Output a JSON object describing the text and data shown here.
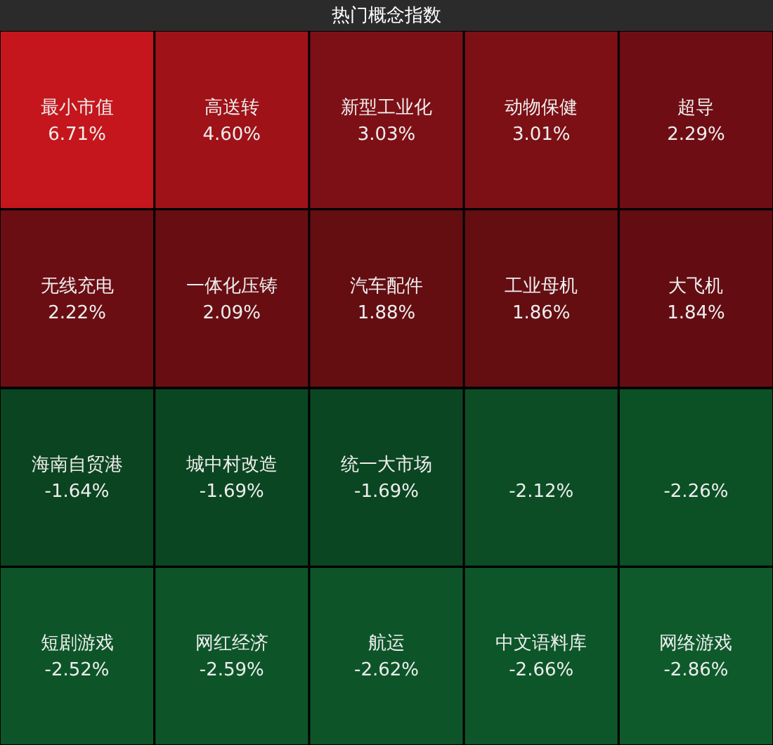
{
  "chart_data": {
    "type": "other",
    "title": "热门概念指数",
    "categories": [
      "最小市值",
      "高送转",
      "新型工业化",
      "动物保健",
      "超导",
      "无线充电",
      "一体化压铸",
      "汽车配件",
      "工业母机",
      "大飞机",
      "海南自贸港",
      "城中村改造",
      "统一大市场",
      null,
      null,
      "短剧游戏",
      "网红经济",
      "航运",
      "中文语料库",
      "网络游戏"
    ],
    "values": [
      6.71,
      4.6,
      3.03,
      3.01,
      2.29,
      2.22,
      2.09,
      1.88,
      1.86,
      1.84,
      -1.64,
      -1.69,
      -1.69,
      -2.12,
      -2.26,
      -2.52,
      -2.59,
      -2.62,
      -2.66,
      -2.86
    ],
    "value_labels": [
      "6.71%",
      "4.60%",
      "3.03%",
      "3.01%",
      "2.29%",
      "2.22%",
      "2.09%",
      "1.88%",
      "1.86%",
      "1.84%",
      "-1.64%",
      "-1.69%",
      "-1.69%",
      "-2.12%",
      "-2.26%",
      "-2.52%",
      "-2.59%",
      "-2.62%",
      "-2.66%",
      "-2.86%"
    ],
    "colors": [
      "#c4161c",
      "#9e1218",
      "#7d1016",
      "#7c1015",
      "#6e0e14",
      "#6b0e14",
      "#680e13",
      "#640e12",
      "#640e12",
      "#630d12",
      "#0b4420",
      "#0b4622",
      "#0b4622",
      "#0c4d25",
      "#0c5026",
      "#0d5428",
      "#0d5529",
      "#0d5529",
      "#0d5629",
      "#0e5a2b"
    ]
  }
}
